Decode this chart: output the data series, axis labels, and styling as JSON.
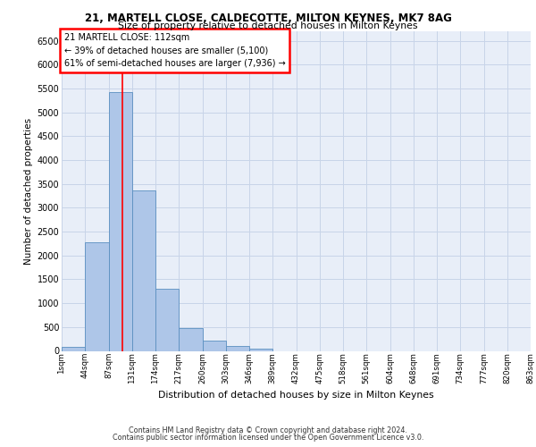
{
  "title1": "21, MARTELL CLOSE, CALDECOTTE, MILTON KEYNES, MK7 8AG",
  "title2": "Size of property relative to detached houses in Milton Keynes",
  "xlabel": "Distribution of detached houses by size in Milton Keynes",
  "ylabel": "Number of detached properties",
  "bar_color": "#aec6e8",
  "bar_edge_color": "#5a8fc0",
  "bar_heights": [
    75,
    2280,
    5430,
    3370,
    1300,
    475,
    210,
    95,
    50,
    0,
    0,
    0,
    0,
    0,
    0,
    0,
    0,
    0,
    0
  ],
  "tick_labels": [
    "1sqm",
    "44sqm",
    "87sqm",
    "131sqm",
    "174sqm",
    "217sqm",
    "260sqm",
    "303sqm",
    "346sqm",
    "389sqm",
    "432sqm",
    "475sqm",
    "518sqm",
    "561sqm",
    "604sqm",
    "648sqm",
    "691sqm",
    "734sqm",
    "777sqm",
    "820sqm",
    "863sqm"
  ],
  "ylim": [
    0,
    6700
  ],
  "yticks": [
    0,
    500,
    1000,
    1500,
    2000,
    2500,
    3000,
    3500,
    4000,
    4500,
    5000,
    5500,
    6000,
    6500
  ],
  "property_line_x": 2.58,
  "annotation_title": "21 MARTELL CLOSE: 112sqm",
  "annotation_line1": "← 39% of detached houses are smaller (5,100)",
  "annotation_line2": "61% of semi-detached houses are larger (7,936) →",
  "grid_color": "#c8d4e8",
  "background_color": "#e8eef8",
  "footer_line1": "Contains HM Land Registry data © Crown copyright and database right 2024.",
  "footer_line2": "Contains public sector information licensed under the Open Government Licence v3.0."
}
